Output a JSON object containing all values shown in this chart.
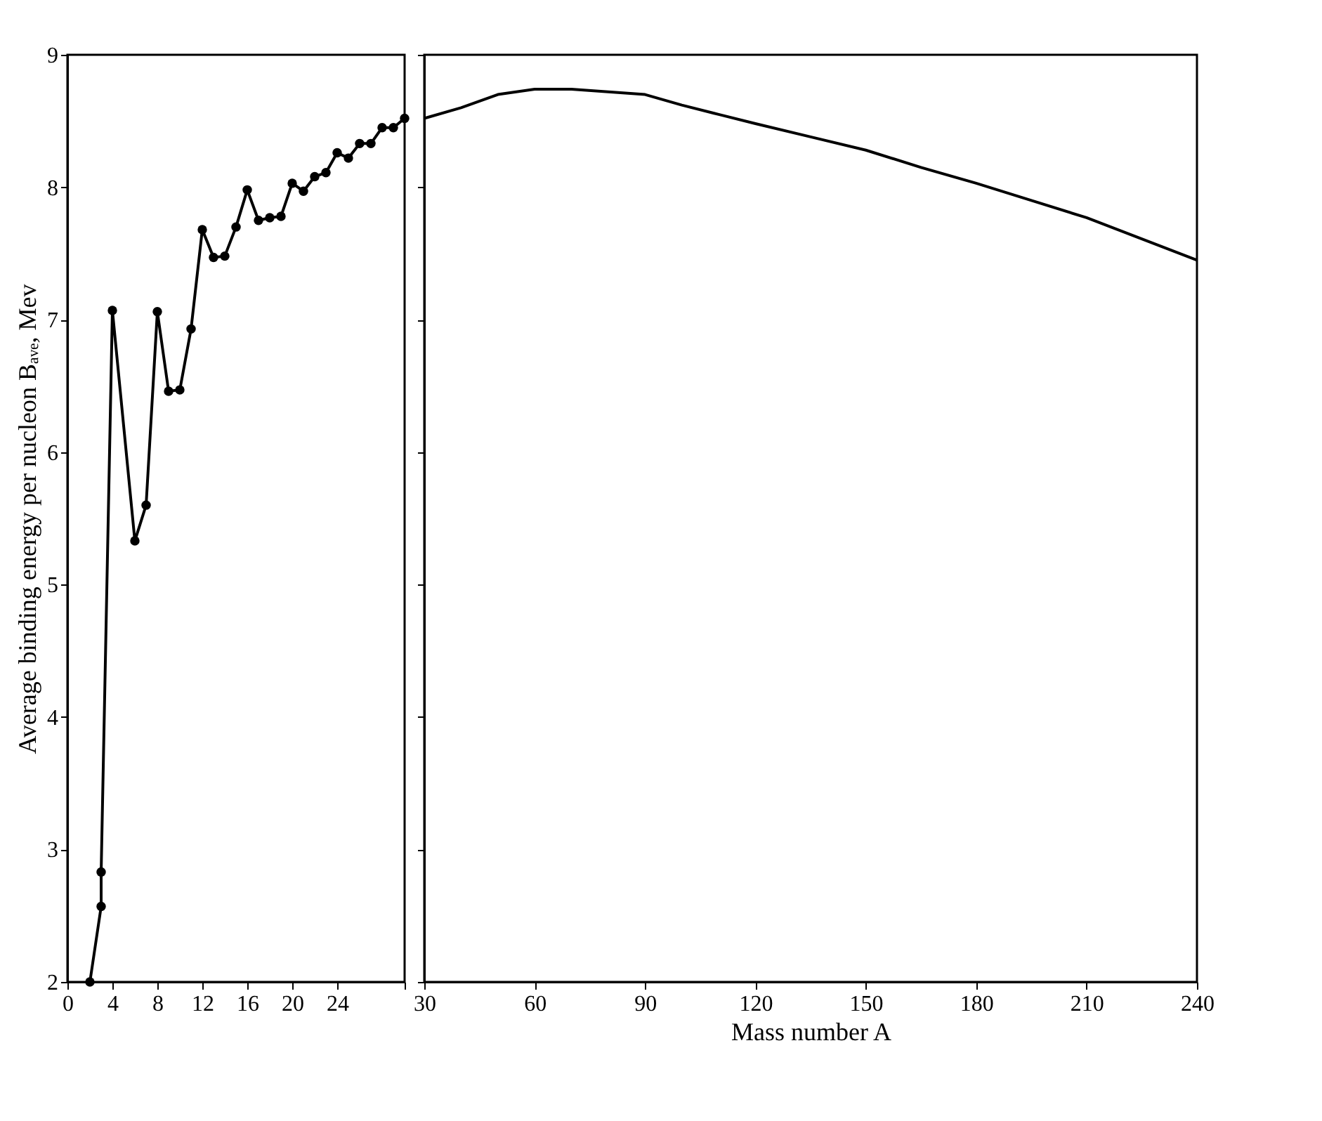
{
  "chart_data": [
    {
      "type": "line",
      "ylabel": "Average binding energy per nucleon Bₐᵥₑ, Mev",
      "xlim": [
        0,
        30
      ],
      "xticks": [
        0,
        4,
        8,
        12,
        16,
        20,
        24,
        {
          "value": 30,
          "label": null
        }
      ],
      "ylim": [
        2,
        9
      ],
      "yticks": [
        2,
        3,
        4,
        5,
        6,
        7,
        8,
        9
      ],
      "marker": "circle",
      "grid": false,
      "series": [
        {
          "color": "#000000",
          "x": [
            2,
            3,
            3,
            4,
            6,
            7,
            8,
            9,
            10,
            11,
            12,
            13,
            14,
            15,
            16,
            17,
            18,
            19,
            20,
            21,
            22,
            23,
            24,
            25,
            26,
            27,
            28,
            29,
            30
          ],
          "values": [
            2,
            2.57,
            2.83,
            7.07,
            5.33,
            5.6,
            7.06,
            6.46,
            6.47,
            6.93,
            7.68,
            7.47,
            7.48,
            7.7,
            7.98,
            7.75,
            7.77,
            7.78,
            8.03,
            7.97,
            8.08,
            8.11,
            8.26,
            8.22,
            8.33,
            8.33,
            8.45,
            8.45,
            8.52
          ]
        }
      ]
    },
    {
      "type": "line",
      "xlabel": "Mass number A",
      "xlim": [
        30,
        240
      ],
      "xticks": [
        30,
        60,
        90,
        120,
        150,
        180,
        210,
        240
      ],
      "ylim": [
        2,
        9
      ],
      "yticks": [
        2,
        3,
        4,
        5,
        6,
        7,
        8,
        9
      ],
      "tick_labels": "x",
      "grid": false,
      "series": [
        {
          "color": "#000000",
          "x": [
            30,
            40,
            50,
            60,
            70,
            80,
            90,
            100,
            110,
            120,
            135,
            150,
            165,
            180,
            195,
            210,
            225,
            240
          ],
          "values": [
            8.52,
            8.6,
            8.7,
            8.74,
            8.74,
            8.72,
            8.7,
            8.62,
            8.55,
            8.48,
            8.38,
            8.28,
            8.15,
            8.03,
            7.9,
            7.77,
            7.61,
            7.45
          ]
        }
      ]
    }
  ]
}
